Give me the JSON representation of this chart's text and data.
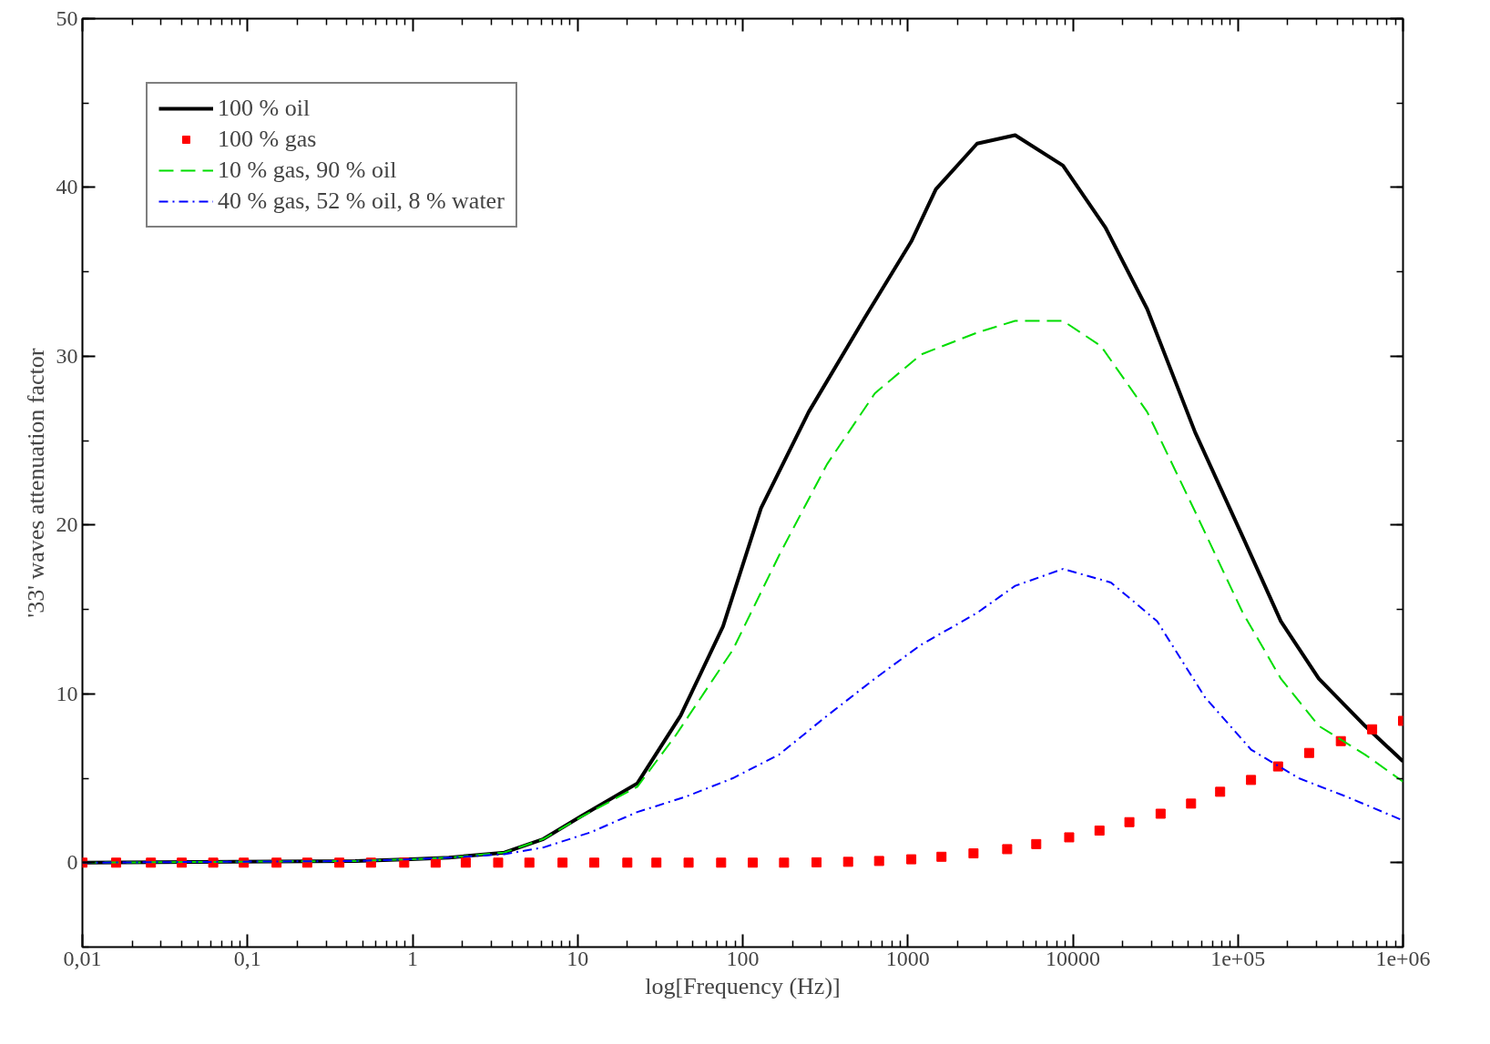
{
  "chart_data": {
    "type": "line",
    "xlabel": "log[Frequency (Hz)]",
    "ylabel": "'33' waves attenuation factor",
    "log": "x",
    "grid": false,
    "legend": "top left",
    "xlim": [
      0.01,
      1000000
    ],
    "ylim": [
      -5,
      50
    ],
    "xticks": [
      {
        "value": 0.01,
        "label": "0,01"
      },
      {
        "value": 0.1,
        "label": "0,1"
      },
      1,
      10,
      100,
      1000,
      10000,
      {
        "value": 100000,
        "label": "1e+05"
      },
      {
        "value": 1000000,
        "label": "1e+06"
      }
    ],
    "yticks": [
      0,
      10,
      20,
      30,
      40,
      50
    ],
    "series": [
      {
        "name": "100 % oil",
        "color": "#000000",
        "line_style": "solid",
        "x": [
          0.01,
          0.45,
          0.98,
          1.66,
          3.6,
          6.2,
          10.5,
          23,
          42,
          76,
          129,
          251,
          550,
          1050,
          1480,
          2630,
          4470,
          8710,
          15800,
          28200,
          55000,
          107000,
          182000,
          309000,
          589000,
          1000000
        ],
        "values": [
          0,
          0.1,
          0.2,
          0.3,
          0.6,
          1.4,
          2.75,
          4.7,
          8.7,
          14,
          21,
          26.7,
          32.3,
          36.8,
          39.9,
          42.6,
          43.1,
          41.3,
          37.6,
          32.8,
          25.5,
          19.3,
          14.3,
          10.9,
          8.1,
          6.0
        ]
      },
      {
        "name": "100 % gas",
        "color": "#ff0000",
        "type": "scatter",
        "marker": "square",
        "x": [
          0.01,
          0.016,
          0.026,
          0.04,
          0.062,
          0.095,
          0.15,
          0.23,
          0.36,
          0.56,
          0.89,
          1.38,
          2.1,
          3.3,
          5.1,
          8.1,
          12.6,
          20,
          30,
          47,
          74,
          115,
          178,
          280,
          435,
          670,
          1050,
          1600,
          2500,
          4000,
          6000,
          9500,
          14500,
          22000,
          34000,
          52000,
          78000,
          120000,
          175000,
          270000,
          420000,
          650000,
          1000000
        ],
        "values": [
          0,
          0,
          0,
          0,
          0,
          0,
          0,
          0,
          0,
          0,
          0,
          0,
          0,
          0,
          0,
          0,
          0,
          0,
          0,
          0,
          0,
          0,
          0,
          0.02,
          0.05,
          0.1,
          0.2,
          0.35,
          0.55,
          0.8,
          1.1,
          1.5,
          1.9,
          2.4,
          2.9,
          3.5,
          4.2,
          4.9,
          5.7,
          6.5,
          7.2,
          7.9,
          8.4
        ]
      },
      {
        "name": "10 % gas, 90 % oil",
        "color": "#00dd00",
        "line_style": "dashed",
        "x": [
          0.01,
          0.45,
          0.98,
          1.66,
          3.6,
          6.2,
          10.5,
          23,
          39,
          87,
          166,
          324,
          631,
          1200,
          2630,
          4470,
          8710,
          14800,
          28200,
          55000,
          107000,
          182000,
          309000,
          589000,
          1000000
        ],
        "values": [
          0,
          0.1,
          0.2,
          0.3,
          0.6,
          1.4,
          2.7,
          4.5,
          7.5,
          12.6,
          18.2,
          23.6,
          27.8,
          30.1,
          31.4,
          32.1,
          32.1,
          30.6,
          26.7,
          20.8,
          14.8,
          10.9,
          8.1,
          6.4,
          4.8
        ]
      },
      {
        "name": "40 % gas, 52 % oil, 8 % water",
        "color": "#0000ff",
        "line_style": "dotted",
        "x": [
          0.01,
          0.45,
          0.98,
          1.66,
          3.6,
          6.2,
          12,
          23,
          45,
          87,
          166,
          324,
          631,
          1200,
          2630,
          4470,
          8710,
          17000,
          32400,
          63100,
          120000,
          234000,
          457000,
          1000000
        ],
        "values": [
          0,
          0.1,
          0.2,
          0.3,
          0.5,
          0.9,
          1.8,
          3.0,
          3.9,
          5.0,
          6.4,
          8.7,
          10.9,
          12.9,
          14.8,
          16.4,
          17.4,
          16.6,
          14.3,
          9.8,
          6.7,
          5.0,
          3.9,
          2.5
        ]
      }
    ]
  }
}
